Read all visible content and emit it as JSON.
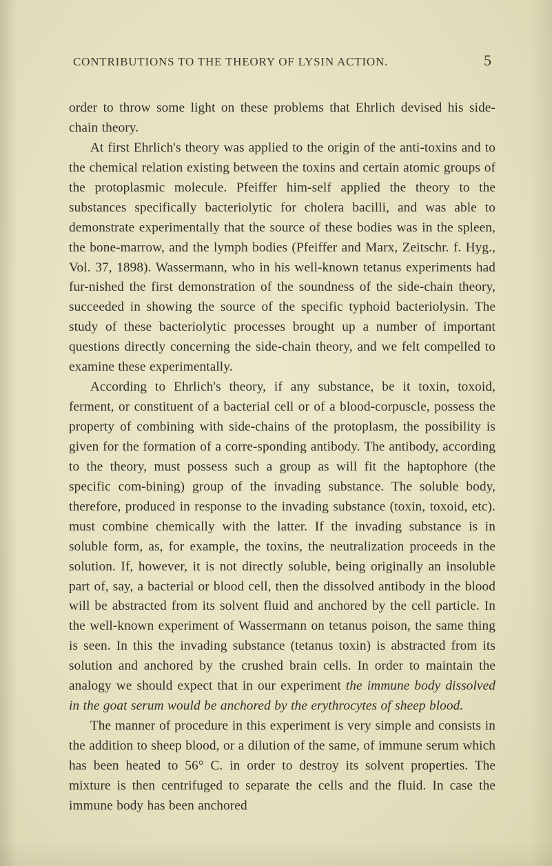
{
  "page": {
    "running_title": "CONTRIBUTIONS TO THE THEORY OF LYSIN ACTION.",
    "page_number": "5",
    "background_color": "#e8e4c5",
    "text_color": "#2f2f28",
    "font_family": "Times New Roman",
    "body_font_size_pt": 14.5,
    "header_font_size_pt": 12.5,
    "pagenum_font_size_pt": 16,
    "line_height": 1.5
  },
  "paragraphs": {
    "p1": "order to throw some light on these problems that Ehrlich devised his side-chain theory.",
    "p2": "At first Ehrlich's theory was applied to the origin of the anti-toxins and to the chemical relation existing between the toxins and certain atomic groups of the protoplasmic molecule. Pfeiffer him-self applied the theory to the substances specifically bacteriolytic for cholera bacilli, and was able to demonstrate experimentally that the source of these bodies was in the spleen, the bone-marrow, and the lymph bodies (Pfeiffer and Marx, Zeitschr. f. Hyg., Vol. 37, 1898). Wassermann, who in his well-known tetanus experiments had fur-nished the first demonstration of the soundness of the side-chain theory, succeeded in showing the source of the specific typhoid bacteriolysin. The study of these bacteriolytic processes brought up a number of important questions directly concerning the side-chain theory, and we felt compelled to examine these experimentally.",
    "p3a": "According to Ehrlich's theory, if any substance, be it toxin, toxoid, ferment, or constituent of a bacterial cell or of a blood-corpuscle, possess the property of combining with side-chains of the protoplasm, the possibility is given for the formation of a corre-sponding antibody. The antibody, according to the theory, must possess such a group as will fit the haptophore (the specific com-bining) group of the invading substance. The soluble body, therefore, produced in response to the invading substance (toxin, toxoid, etc). must combine chemically with the latter. If the invading substance is in soluble form, as, for example, the toxins, the neutralization proceeds in the solution. If, however, it is not directly soluble, being originally an insoluble part of, say, a bacterial or blood cell, then the dissolved antibody in the blood will be abstracted from its solvent fluid and anchored by the cell particle. In the well-known experiment of Wassermann on tetanus poison, the same thing is seen. In this the invading substance (tetanus toxin) is abstracted from its solution and anchored by the crushed brain cells. In order to maintain the analogy we should expect that in our experiment ",
    "p3i": "the immune body dissolved in the goat serum would be anchored by the erythrocytes of sheep blood.",
    "p4": "The manner of procedure in this experiment is very simple and consists in the addition to sheep blood, or a dilution of the same, of immune serum which has been heated to 56° C. in order to destroy its solvent properties. The mixture is then centrifuged to separate the cells and the fluid. In case the immune body has been anchored"
  }
}
